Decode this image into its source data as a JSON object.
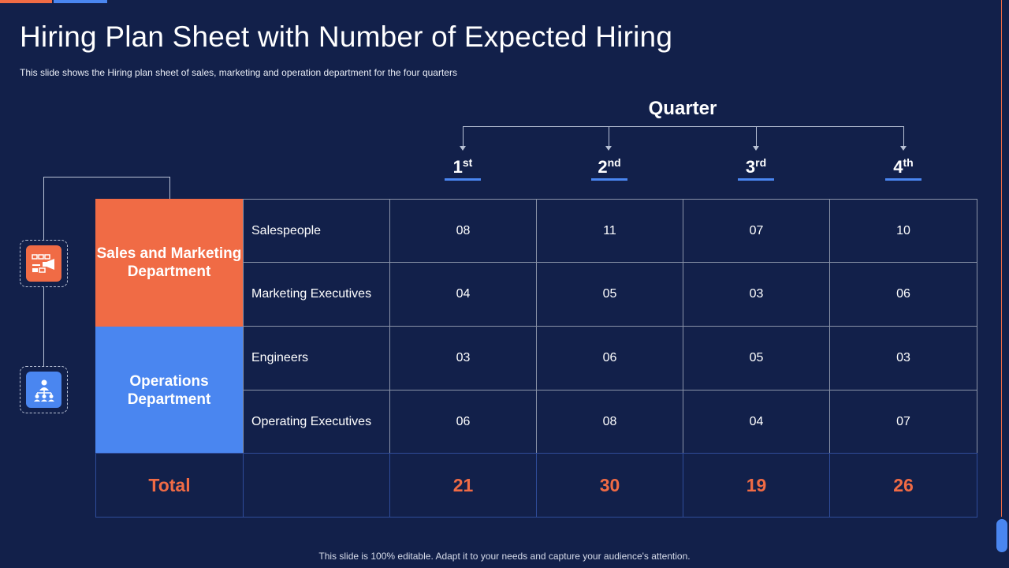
{
  "title": "Hiring Plan Sheet with Number of Expected Hiring",
  "subtitle": "This slide shows the Hiring plan sheet of sales, marketing and operation department for the four quarters",
  "quarter_heading": "Quarter",
  "quarters": [
    {
      "num": "1",
      "suffix": "st"
    },
    {
      "num": "2",
      "suffix": "nd"
    },
    {
      "num": "3",
      "suffix": "rd"
    },
    {
      "num": "4",
      "suffix": "th"
    }
  ],
  "departments": [
    {
      "name": "Sales and Marketing Department",
      "icon": "marketing-megaphone-icon",
      "color": "#f06b45",
      "roles": [
        {
          "label": "Salespeople",
          "values": [
            "08",
            "11",
            "07",
            "10"
          ]
        },
        {
          "label": "Marketing Executives",
          "values": [
            "04",
            "05",
            "03",
            "06"
          ]
        }
      ]
    },
    {
      "name": "Operations Department",
      "icon": "team-hierarchy-icon",
      "color": "#4a86f0",
      "roles": [
        {
          "label": "Engineers",
          "values": [
            "03",
            "06",
            "05",
            "03"
          ]
        },
        {
          "label": "Operating Executives",
          "values": [
            "06",
            "08",
            "04",
            "07"
          ]
        }
      ]
    }
  ],
  "total": {
    "label": "Total",
    "values": [
      "21",
      "30",
      "19",
      "26"
    ]
  },
  "footer": "This slide is 100% editable. Adapt it to your needs and capture your audience's attention.",
  "colors": {
    "background": "#12204a",
    "accent_orange": "#f06b45",
    "accent_blue": "#4a86f0"
  }
}
